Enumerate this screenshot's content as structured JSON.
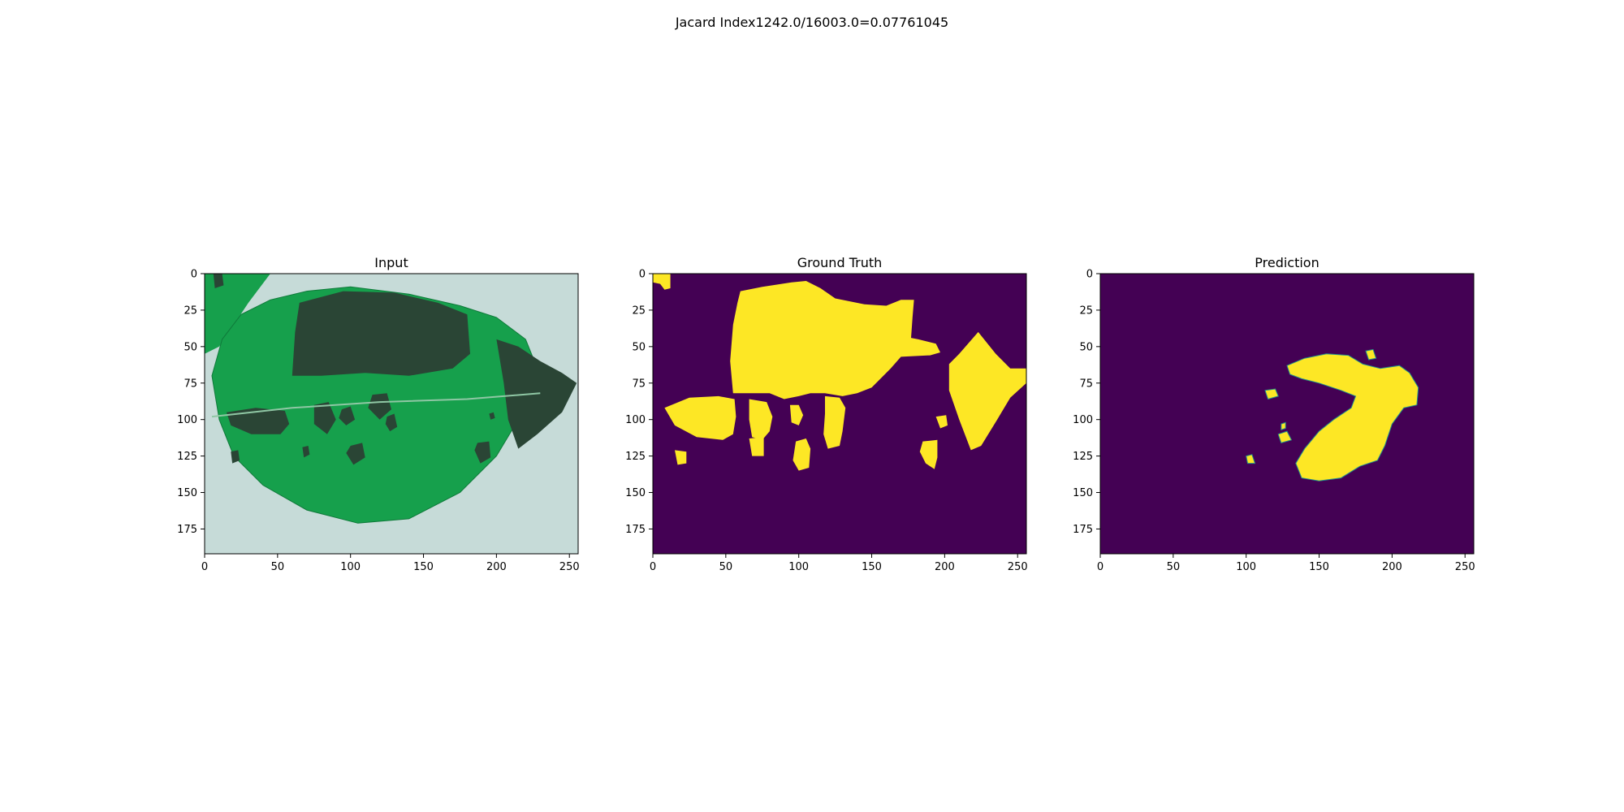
{
  "figure": {
    "suptitle": "Jacard Index1242.0/16003.0=0.07761045"
  },
  "colors": {
    "mask_background": "#440154",
    "mask_foreground": "#fde725",
    "mask_edge": "#21918c",
    "leaf_green": "#16a04c",
    "leaf_dark": "#2a4535",
    "leaf_background": "#c6dbd8",
    "axes_frame": "#000000"
  },
  "chart_data": [
    {
      "type": "image",
      "title": "Input",
      "xlim": [
        0,
        256
      ],
      "ylim": [
        192,
        0
      ],
      "xticks": [
        0,
        50,
        100,
        150,
        200,
        250
      ],
      "yticks": [
        0,
        25,
        50,
        75,
        100,
        125,
        150,
        175
      ],
      "content": "leaf photo with dark lesions",
      "leaf_outline": [
        [
          5,
          70
        ],
        [
          12,
          45
        ],
        [
          25,
          28
        ],
        [
          45,
          18
        ],
        [
          70,
          12
        ],
        [
          100,
          9
        ],
        [
          140,
          14
        ],
        [
          175,
          22
        ],
        [
          200,
          30
        ],
        [
          220,
          45
        ],
        [
          228,
          65
        ],
        [
          215,
          100
        ],
        [
          200,
          125
        ],
        [
          175,
          150
        ],
        [
          140,
          168
        ],
        [
          105,
          171
        ],
        [
          70,
          162
        ],
        [
          40,
          145
        ],
        [
          20,
          125
        ],
        [
          10,
          100
        ]
      ],
      "upper_leaf": [
        [
          0,
          0
        ],
        [
          45,
          0
        ],
        [
          30,
          20
        ],
        [
          10,
          50
        ],
        [
          0,
          55
        ]
      ],
      "lesions": [
        [
          [
            65,
            20
          ],
          [
            95,
            12
          ],
          [
            130,
            13
          ],
          [
            160,
            20
          ],
          [
            180,
            28
          ],
          [
            182,
            55
          ],
          [
            170,
            65
          ],
          [
            140,
            70
          ],
          [
            110,
            68
          ],
          [
            80,
            70
          ],
          [
            60,
            70
          ],
          [
            62,
            40
          ]
        ],
        [
          [
            200,
            45
          ],
          [
            215,
            50
          ],
          [
            230,
            60
          ],
          [
            245,
            68
          ],
          [
            255,
            75
          ],
          [
            245,
            95
          ],
          [
            228,
            110
          ],
          [
            215,
            120
          ],
          [
            208,
            100
          ],
          [
            205,
            75
          ]
        ],
        [
          [
            15,
            95
          ],
          [
            35,
            92
          ],
          [
            55,
            94
          ],
          [
            58,
            103
          ],
          [
            52,
            110
          ],
          [
            32,
            110
          ],
          [
            18,
            104
          ]
        ],
        [
          [
            75,
            90
          ],
          [
            85,
            88
          ],
          [
            90,
            100
          ],
          [
            84,
            110
          ],
          [
            75,
            103
          ]
        ],
        [
          [
            115,
            83
          ],
          [
            125,
            82
          ],
          [
            128,
            93
          ],
          [
            120,
            100
          ],
          [
            112,
            92
          ]
        ],
        [
          [
            94,
            93
          ],
          [
            100,
            91
          ],
          [
            103,
            100
          ],
          [
            97,
            104
          ],
          [
            92,
            99
          ]
        ],
        [
          [
            125,
            98
          ],
          [
            130,
            96
          ],
          [
            132,
            105
          ],
          [
            127,
            108
          ],
          [
            124,
            103
          ]
        ],
        [
          [
            100,
            118
          ],
          [
            108,
            116
          ],
          [
            110,
            126
          ],
          [
            102,
            131
          ],
          [
            97,
            123
          ]
        ],
        [
          [
            187,
            116
          ],
          [
            195,
            115
          ],
          [
            196,
            126
          ],
          [
            189,
            130
          ],
          [
            185,
            121
          ]
        ],
        [
          [
            67,
            119
          ],
          [
            71,
            118
          ],
          [
            72,
            124
          ],
          [
            68,
            126
          ]
        ],
        [
          [
            18,
            122
          ],
          [
            23,
            121
          ],
          [
            24,
            128
          ],
          [
            19,
            130
          ]
        ],
        [
          [
            195,
            96
          ],
          [
            198,
            95
          ],
          [
            199,
            99
          ],
          [
            196,
            100
          ]
        ],
        [
          [
            6,
            0
          ],
          [
            12,
            0
          ],
          [
            13,
            8
          ],
          [
            7,
            10
          ]
        ]
      ]
    },
    {
      "type": "image",
      "title": "Ground Truth",
      "xlim": [
        0,
        256
      ],
      "ylim": [
        192,
        0
      ],
      "xticks": [
        0,
        50,
        100,
        150,
        200,
        250
      ],
      "yticks": [
        0,
        25,
        50,
        75,
        100,
        125,
        150,
        175
      ],
      "content": "binary mask",
      "regions": [
        [
          [
            0,
            0
          ],
          [
            12,
            0
          ],
          [
            12,
            10
          ],
          [
            8,
            11
          ],
          [
            5,
            7
          ],
          [
            0,
            6
          ]
        ],
        [
          [
            60,
            12
          ],
          [
            75,
            9
          ],
          [
            95,
            6
          ],
          [
            105,
            5
          ],
          [
            115,
            10
          ],
          [
            125,
            17
          ],
          [
            145,
            21
          ],
          [
            160,
            22
          ],
          [
            170,
            18
          ],
          [
            179,
            18
          ],
          [
            178,
            30
          ],
          [
            177,
            44
          ],
          [
            182,
            45
          ],
          [
            194,
            48
          ],
          [
            197,
            54
          ],
          [
            190,
            56
          ],
          [
            170,
            57
          ],
          [
            163,
            65
          ],
          [
            150,
            78
          ],
          [
            140,
            82
          ],
          [
            130,
            84
          ],
          [
            118,
            82
          ],
          [
            108,
            82
          ],
          [
            100,
            84
          ],
          [
            90,
            86
          ],
          [
            80,
            82
          ],
          [
            55,
            82
          ],
          [
            53,
            60
          ],
          [
            55,
            35
          ],
          [
            58,
            20
          ]
        ],
        [
          [
            8,
            92
          ],
          [
            25,
            85
          ],
          [
            45,
            84
          ],
          [
            56,
            86
          ],
          [
            57,
            98
          ],
          [
            55,
            110
          ],
          [
            48,
            114
          ],
          [
            30,
            112
          ],
          [
            15,
            104
          ]
        ],
        [
          [
            66,
            86
          ],
          [
            78,
            88
          ],
          [
            82,
            98
          ],
          [
            80,
            108
          ],
          [
            75,
            114
          ],
          [
            68,
            112
          ],
          [
            66,
            100
          ]
        ],
        [
          [
            118,
            84
          ],
          [
            128,
            85
          ],
          [
            132,
            92
          ],
          [
            130,
            108
          ],
          [
            128,
            118
          ],
          [
            120,
            120
          ],
          [
            117,
            110
          ],
          [
            118,
            96
          ]
        ],
        [
          [
            223,
            40
          ],
          [
            235,
            55
          ],
          [
            245,
            65
          ],
          [
            256,
            65
          ],
          [
            256,
            75
          ],
          [
            245,
            85
          ],
          [
            236,
            100
          ],
          [
            225,
            118
          ],
          [
            218,
            121
          ],
          [
            210,
            100
          ],
          [
            203,
            80
          ],
          [
            203,
            62
          ],
          [
            210,
            55
          ]
        ],
        [
          [
            94,
            90
          ],
          [
            100,
            90
          ],
          [
            103,
            97
          ],
          [
            100,
            104
          ],
          [
            95,
            102
          ]
        ],
        [
          [
            98,
            115
          ],
          [
            105,
            113
          ],
          [
            108,
            120
          ],
          [
            107,
            133
          ],
          [
            100,
            135
          ],
          [
            96,
            128
          ]
        ],
        [
          [
            185,
            115
          ],
          [
            195,
            114
          ],
          [
            195,
            126
          ],
          [
            193,
            134
          ],
          [
            187,
            130
          ],
          [
            183,
            122
          ]
        ],
        [
          [
            66,
            113
          ],
          [
            76,
            112
          ],
          [
            76,
            125
          ],
          [
            68,
            125
          ]
        ],
        [
          [
            15,
            121
          ],
          [
            23,
            122
          ],
          [
            23,
            130
          ],
          [
            17,
            131
          ]
        ],
        [
          [
            194,
            98
          ],
          [
            201,
            97
          ],
          [
            202,
            104
          ],
          [
            197,
            106
          ]
        ]
      ]
    },
    {
      "type": "image",
      "title": "Prediction",
      "xlim": [
        0,
        256
      ],
      "ylim": [
        192,
        0
      ],
      "xticks": [
        0,
        50,
        100,
        150,
        200,
        250
      ],
      "yticks": [
        0,
        25,
        50,
        75,
        100,
        125,
        150,
        175
      ],
      "content": "binary mask",
      "regions": [
        [
          [
            128,
            63
          ],
          [
            140,
            58
          ],
          [
            155,
            55
          ],
          [
            170,
            56
          ],
          [
            180,
            62
          ],
          [
            192,
            65
          ],
          [
            205,
            63
          ],
          [
            212,
            68
          ],
          [
            218,
            78
          ],
          [
            217,
            90
          ],
          [
            208,
            92
          ],
          [
            200,
            103
          ],
          [
            195,
            118
          ],
          [
            190,
            128
          ],
          [
            178,
            132
          ],
          [
            165,
            140
          ],
          [
            150,
            142
          ],
          [
            138,
            140
          ],
          [
            134,
            130
          ],
          [
            140,
            120
          ],
          [
            150,
            108
          ],
          [
            160,
            100
          ],
          [
            172,
            92
          ],
          [
            175,
            84
          ],
          [
            165,
            80
          ],
          [
            150,
            75
          ],
          [
            138,
            72
          ],
          [
            130,
            69
          ]
        ],
        [
          [
            113,
            80
          ],
          [
            120,
            79
          ],
          [
            122,
            84
          ],
          [
            115,
            86
          ]
        ],
        [
          [
            122,
            110
          ],
          [
            128,
            108
          ],
          [
            131,
            114
          ],
          [
            124,
            116
          ]
        ],
        [
          [
            100,
            125
          ],
          [
            104,
            124
          ],
          [
            106,
            130
          ],
          [
            101,
            130
          ]
        ],
        [
          [
            182,
            53
          ],
          [
            187,
            52
          ],
          [
            189,
            58
          ],
          [
            184,
            59
          ]
        ],
        [
          [
            124,
            103
          ],
          [
            127,
            102
          ],
          [
            127,
            106
          ],
          [
            124,
            107
          ]
        ]
      ]
    }
  ]
}
